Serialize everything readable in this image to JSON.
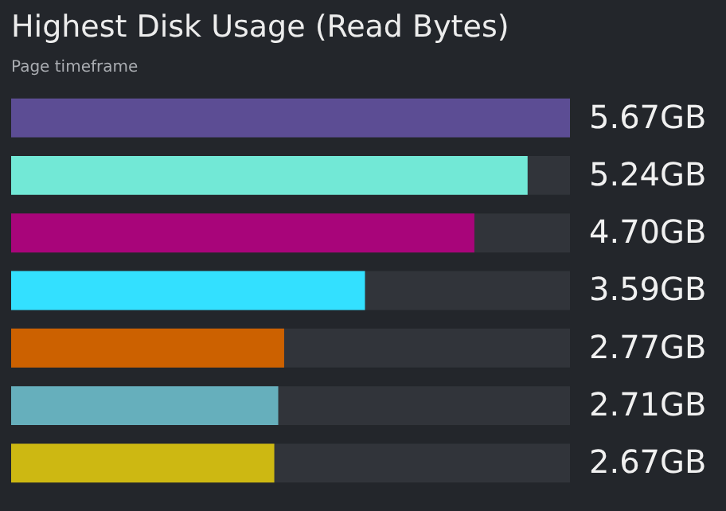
{
  "chart_data": {
    "type": "bar",
    "orientation": "horizontal",
    "title": "Highest Disk Usage (Read Bytes)",
    "subtitle": "Page timeframe",
    "categories": [
      null,
      null,
      null,
      null,
      null,
      null,
      null
    ],
    "values": [
      5.67,
      5.24,
      4.7,
      3.59,
      2.77,
      2.71,
      2.67
    ],
    "value_labels": [
      "5.67GB",
      "5.24GB",
      "4.70GB",
      "3.59GB",
      "2.77GB",
      "2.71GB",
      "2.67GB"
    ],
    "colors": [
      "#5c4d94",
      "#72e8d6",
      "#a8057a",
      "#33e0ff",
      "#cc6100",
      "#66afbc",
      "#cdb812"
    ]
  }
}
